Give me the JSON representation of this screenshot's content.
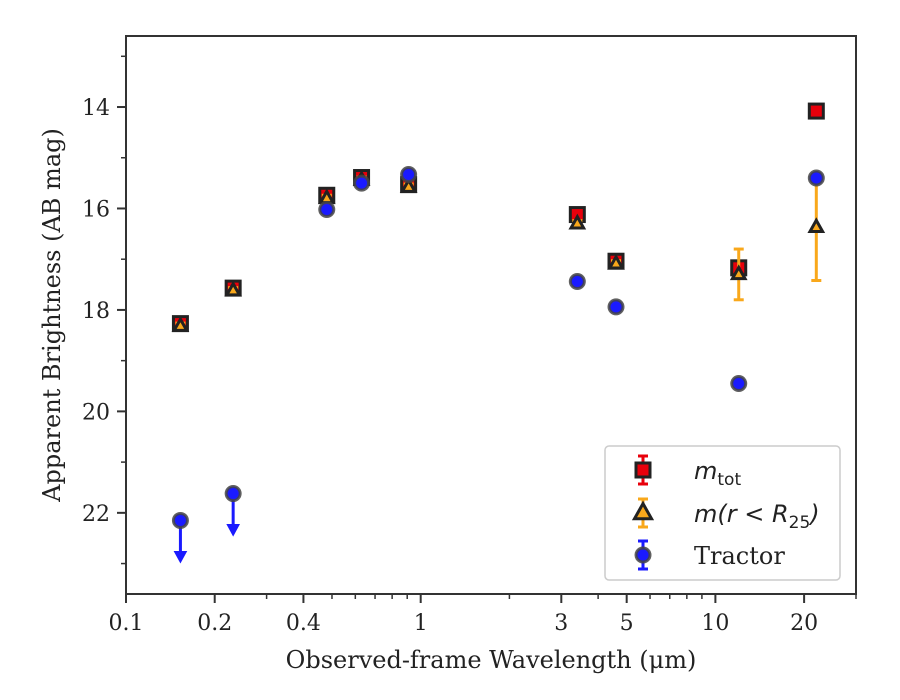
{
  "chart_data": {
    "type": "scatter",
    "xlabel": "Observed-frame Wavelength (μm)",
    "ylabel": "Apparent Brightness (AB mag)",
    "xscale": "log",
    "xlim": [
      0.1,
      30
    ],
    "ylim": [
      23.6,
      12.6
    ],
    "y_inverted": true,
    "x_ticks": [
      {
        "value": 0.1,
        "label": "0.1"
      },
      {
        "value": 0.2,
        "label": "0.2"
      },
      {
        "value": 0.4,
        "label": "0.4"
      },
      {
        "value": 1,
        "label": "1"
      },
      {
        "value": 3,
        "label": "3"
      },
      {
        "value": 5,
        "label": "5"
      },
      {
        "value": 10,
        "label": "10"
      },
      {
        "value": 20,
        "label": "20"
      }
    ],
    "y_ticks": [
      {
        "value": 14,
        "label": "14"
      },
      {
        "value": 16,
        "label": "16"
      },
      {
        "value": 18,
        "label": "18"
      },
      {
        "value": 20,
        "label": "20"
      },
      {
        "value": 22,
        "label": "22"
      }
    ],
    "legend_position": "lower-right",
    "series": [
      {
        "name": "m_tot",
        "legend_main": "m",
        "legend_sub": "tot",
        "marker": "square",
        "color": "#e8000b",
        "edge": "#222222",
        "points": [
          {
            "x": 0.153,
            "y": 18.27,
            "err": 0.1
          },
          {
            "x": 0.231,
            "y": 17.57,
            "err": 0.1
          },
          {
            "x": 0.48,
            "y": 15.74,
            "err": 0.08
          },
          {
            "x": 0.63,
            "y": 15.39,
            "err": 0.08
          },
          {
            "x": 0.91,
            "y": 15.53,
            "err": 0.08
          },
          {
            "x": 3.4,
            "y": 16.12,
            "err": 0.08
          },
          {
            "x": 4.6,
            "y": 17.04,
            "err": 0.08
          },
          {
            "x": 12.0,
            "y": 17.17,
            "err": 0.1
          },
          {
            "x": 22.0,
            "y": 14.08,
            "err": 0.05
          }
        ]
      },
      {
        "name": "m(r < R25)",
        "legend_main": "m(r < R",
        "legend_sub": "25",
        "legend_tail": ")",
        "marker": "triangle",
        "color": "#f9a81b",
        "edge": "#222222",
        "points": [
          {
            "x": 0.153,
            "y": 18.32,
            "err": 0.06
          },
          {
            "x": 0.231,
            "y": 17.62,
            "err": 0.06
          },
          {
            "x": 0.48,
            "y": 15.8,
            "err": 0.06
          },
          {
            "x": 0.63,
            "y": 15.44,
            "err": 0.06
          },
          {
            "x": 0.91,
            "y": 15.58,
            "err": 0.06
          },
          {
            "x": 3.4,
            "y": 16.3,
            "err": 0.06
          },
          {
            "x": 4.6,
            "y": 17.09,
            "err": 0.06
          },
          {
            "x": 12.0,
            "y": 17.3,
            "err": 0.5
          },
          {
            "x": 22.0,
            "y": 16.37,
            "err": 1.05
          }
        ]
      },
      {
        "name": "Tractor",
        "legend_main": "Tractor",
        "marker": "circle",
        "color": "#1a1aff",
        "edge": "#444444",
        "points": [
          {
            "x": 0.153,
            "y": 22.15,
            "upper_limit": true
          },
          {
            "x": 0.231,
            "y": 21.62,
            "upper_limit": true
          },
          {
            "x": 0.48,
            "y": 16.02
          },
          {
            "x": 0.63,
            "y": 15.5
          },
          {
            "x": 0.91,
            "y": 15.33
          },
          {
            "x": 3.4,
            "y": 17.44
          },
          {
            "x": 4.6,
            "y": 17.94
          },
          {
            "x": 12.0,
            "y": 19.45
          },
          {
            "x": 22.0,
            "y": 15.4
          }
        ]
      }
    ]
  }
}
